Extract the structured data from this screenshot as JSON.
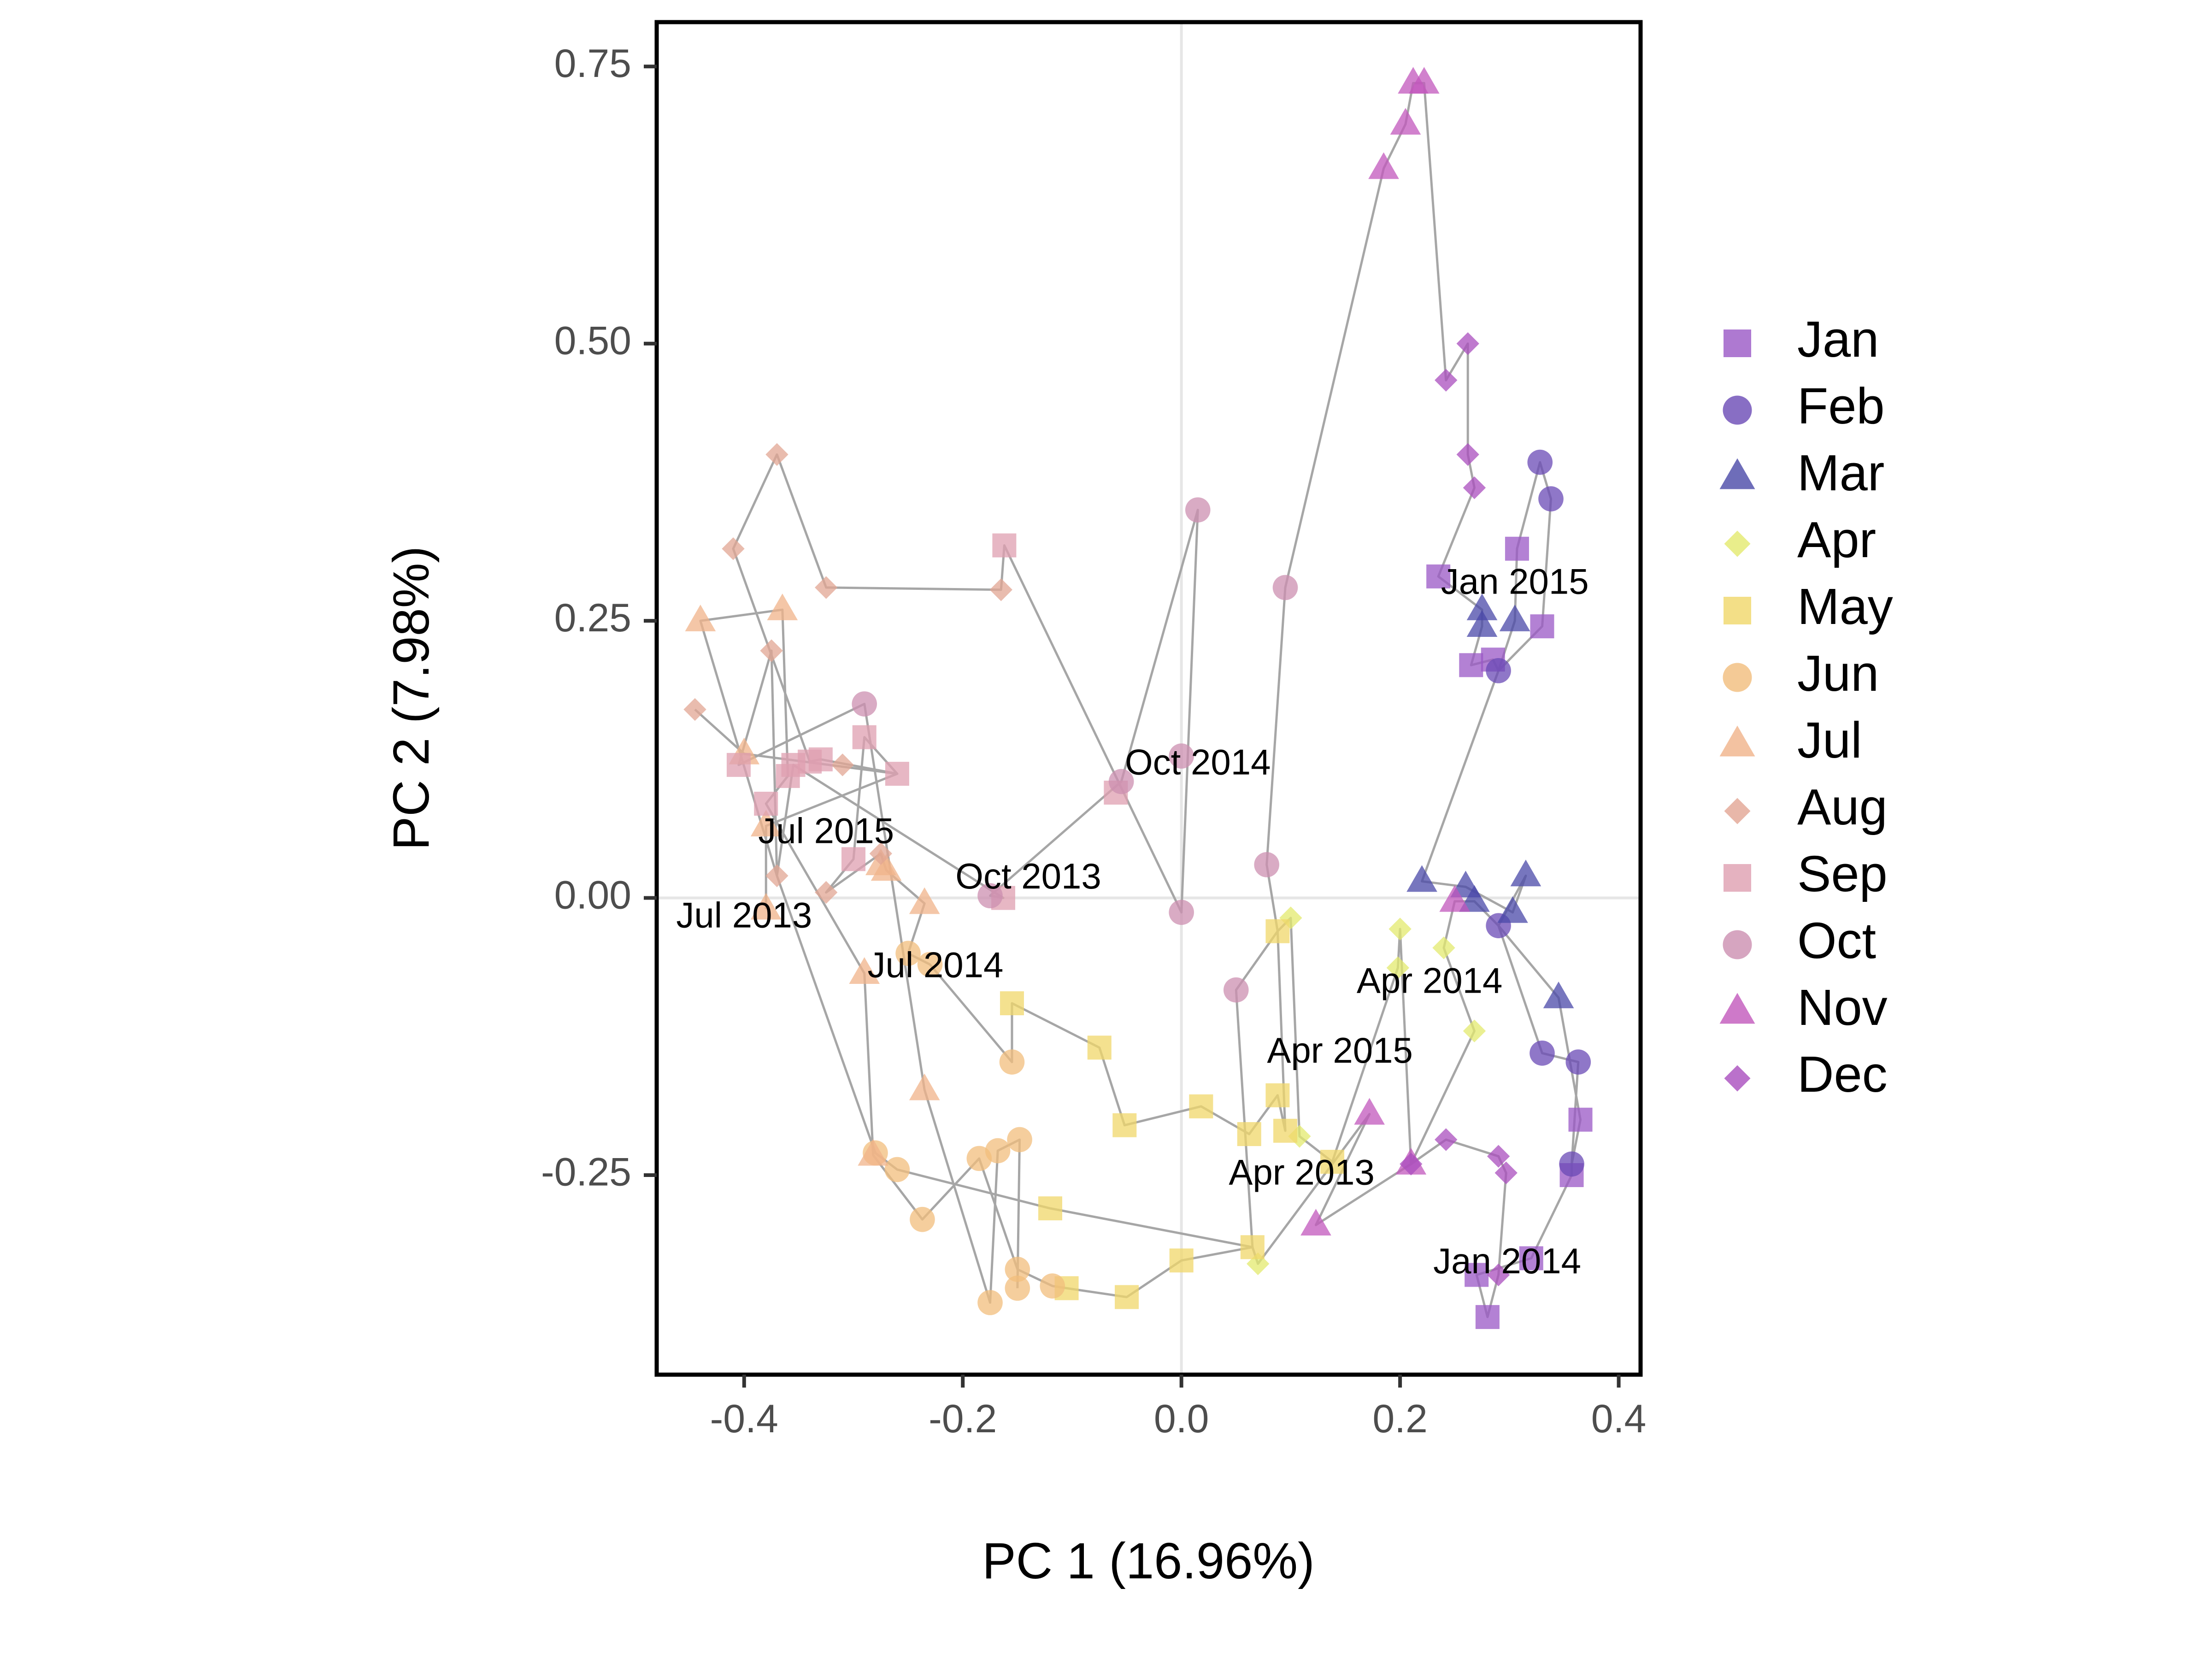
{
  "chart_data": {
    "type": "scatter",
    "xlabel": "PC 1 (16.96%)",
    "ylabel": "PC 2 (7.98%)",
    "xlim": [
      -0.48,
      0.42
    ],
    "ylim": [
      -0.43,
      0.79
    ],
    "xticks": [
      -0.4,
      -0.2,
      0.0,
      0.2,
      0.4
    ],
    "xtick_labels": [
      "-0.4",
      "-0.2",
      "0.0",
      "0.2",
      "0.4"
    ],
    "yticks": [
      -0.25,
      0.0,
      0.25,
      0.5,
      0.75
    ],
    "ytick_labels": [
      "-0.25",
      "0.00",
      "0.25",
      "0.50",
      "0.75"
    ],
    "reference_lines": {
      "x": 0,
      "y": 0
    },
    "grid": false,
    "legend_position": "right",
    "connecting_path_color": "#a6a6a6",
    "series": [
      {
        "name": "Jan",
        "color": "#9a57c6",
        "shape": "square",
        "points": [
          [
            0.235,
            0.29
          ],
          [
            0.307,
            0.315
          ],
          [
            0.33,
            0.245
          ],
          [
            0.265,
            0.21
          ],
          [
            0.285,
            0.215
          ],
          [
            0.365,
            -0.2
          ],
          [
            0.357,
            -0.25
          ],
          [
            0.32,
            -0.325
          ],
          [
            0.27,
            -0.34
          ],
          [
            0.28,
            -0.378
          ]
        ]
      },
      {
        "name": "Feb",
        "color": "#6a4ab5",
        "shape": "circle",
        "points": [
          [
            0.328,
            0.393
          ],
          [
            0.338,
            0.36
          ],
          [
            0.29,
            0.205
          ],
          [
            0.29,
            -0.025
          ],
          [
            0.33,
            -0.14
          ],
          [
            0.363,
            -0.148
          ],
          [
            0.357,
            -0.24
          ]
        ]
      },
      {
        "name": "Mar",
        "color": "#4a48a8",
        "shape": "triangle",
        "points": [
          [
            0.275,
            0.26
          ],
          [
            0.305,
            0.25
          ],
          [
            0.275,
            0.245
          ],
          [
            0.22,
            0.015
          ],
          [
            0.26,
            0.01
          ],
          [
            0.315,
            0.02
          ],
          [
            0.268,
            -0.003
          ],
          [
            0.303,
            -0.013
          ],
          [
            0.345,
            -0.09
          ]
        ]
      },
      {
        "name": "Apr",
        "color": "#e3ea6e",
        "shape": "diamond",
        "points": [
          [
            0.1,
            -0.018
          ],
          [
            0.2,
            -0.028
          ],
          [
            0.24,
            -0.045
          ],
          [
            0.198,
            -0.063
          ],
          [
            0.268,
            -0.12
          ],
          [
            0.07,
            -0.33
          ],
          [
            0.108,
            -0.215
          ]
        ]
      },
      {
        "name": "May",
        "color": "#f0d769",
        "shape": "square",
        "points": [
          [
            0.088,
            -0.03
          ],
          [
            -0.155,
            -0.095
          ],
          [
            -0.075,
            -0.135
          ],
          [
            -0.052,
            -0.205
          ],
          [
            0.018,
            -0.188
          ],
          [
            0.088,
            -0.178
          ],
          [
            0.062,
            -0.213
          ],
          [
            0.095,
            -0.21
          ],
          [
            0.138,
            -0.238
          ],
          [
            -0.12,
            -0.28
          ],
          [
            -0.105,
            -0.352
          ],
          [
            -0.05,
            -0.36
          ],
          [
            0.0,
            -0.327
          ],
          [
            0.065,
            -0.315
          ]
        ]
      },
      {
        "name": "Jun",
        "color": "#f1bd7c",
        "shape": "circle",
        "points": [
          [
            -0.25,
            -0.05
          ],
          [
            -0.23,
            -0.06
          ],
          [
            -0.155,
            -0.148
          ],
          [
            -0.28,
            -0.23
          ],
          [
            -0.26,
            -0.245
          ],
          [
            -0.185,
            -0.235
          ],
          [
            -0.168,
            -0.228
          ],
          [
            -0.148,
            -0.218
          ],
          [
            -0.237,
            -0.29
          ],
          [
            -0.15,
            -0.335
          ],
          [
            -0.175,
            -0.365
          ],
          [
            -0.15,
            -0.352
          ],
          [
            -0.118,
            -0.35
          ]
        ]
      },
      {
        "name": "Jul",
        "color": "#f0b38a",
        "shape": "triangle",
        "points": [
          [
            -0.44,
            0.25
          ],
          [
            -0.365,
            0.26
          ],
          [
            -0.4,
            0.13
          ],
          [
            -0.38,
            0.065
          ],
          [
            -0.275,
            0.03
          ],
          [
            -0.27,
            0.025
          ],
          [
            -0.38,
            -0.01
          ],
          [
            -0.235,
            -0.005
          ],
          [
            -0.29,
            -0.068
          ],
          [
            -0.235,
            -0.173
          ],
          [
            -0.282,
            -0.232
          ]
        ]
      },
      {
        "name": "Aug",
        "color": "#e2a593",
        "shape": "diamond",
        "points": [
          [
            -0.37,
            0.4
          ],
          [
            -0.41,
            0.315
          ],
          [
            -0.325,
            0.28
          ],
          [
            -0.165,
            0.278
          ],
          [
            -0.375,
            0.223
          ],
          [
            -0.445,
            0.17
          ],
          [
            -0.31,
            0.12
          ],
          [
            -0.37,
            0.02
          ],
          [
            -0.325,
            0.005
          ],
          [
            -0.275,
            0.04
          ]
        ]
      },
      {
        "name": "Sep",
        "color": "#df9fb0",
        "shape": "square",
        "points": [
          [
            -0.162,
            0.318
          ],
          [
            -0.29,
            0.145
          ],
          [
            -0.26,
            0.112
          ],
          [
            -0.34,
            0.123
          ],
          [
            -0.33,
            0.125
          ],
          [
            -0.355,
            0.12
          ],
          [
            -0.36,
            0.11
          ],
          [
            -0.405,
            0.12
          ],
          [
            -0.38,
            0.085
          ],
          [
            -0.3,
            0.035
          ],
          [
            -0.163,
            0.0
          ],
          [
            -0.06,
            0.095
          ]
        ]
      },
      {
        "name": "Oct",
        "color": "#cc8fb0",
        "shape": "circle",
        "points": [
          [
            0.015,
            0.35
          ],
          [
            0.095,
            0.28
          ],
          [
            -0.29,
            0.175
          ],
          [
            -0.055,
            0.105
          ],
          [
            0.0,
            0.128
          ],
          [
            0.078,
            0.03
          ],
          [
            -0.175,
            0.002
          ],
          [
            0.0,
            -0.013
          ],
          [
            0.05,
            -0.083
          ]
        ]
      },
      {
        "name": "Nov",
        "color": "#c257bc",
        "shape": "triangle",
        "points": [
          [
            0.212,
            0.735
          ],
          [
            0.222,
            0.735
          ],
          [
            0.205,
            0.698
          ],
          [
            0.185,
            0.658
          ],
          [
            0.25,
            -0.003
          ],
          [
            0.172,
            -0.195
          ],
          [
            0.21,
            -0.24
          ],
          [
            0.123,
            -0.295
          ]
        ]
      },
      {
        "name": "Dec",
        "color": "#a94ebe",
        "shape": "diamond",
        "points": [
          [
            0.262,
            0.5
          ],
          [
            0.242,
            0.467
          ],
          [
            0.262,
            0.4
          ],
          [
            0.268,
            0.37
          ],
          [
            0.242,
            -0.218
          ],
          [
            0.29,
            -0.233
          ],
          [
            0.297,
            -0.248
          ],
          [
            0.21,
            -0.24
          ],
          [
            0.29,
            -0.34
          ]
        ]
      }
    ],
    "path": [
      [
        -0.38,
        -0.01
      ],
      [
        -0.38,
        0.065
      ],
      [
        -0.26,
        0.112
      ],
      [
        -0.33,
        0.125
      ],
      [
        -0.34,
        0.123
      ],
      [
        -0.41,
        0.315
      ],
      [
        -0.37,
        0.4
      ],
      [
        -0.325,
        0.28
      ],
      [
        -0.165,
        0.278
      ],
      [
        -0.162,
        0.318
      ],
      [
        0.0,
        -0.013
      ],
      [
        0.015,
        0.35
      ],
      [
        -0.055,
        0.105
      ],
      [
        -0.175,
        0.002
      ],
      [
        -0.163,
        0.0
      ],
      [
        -0.355,
        0.12
      ],
      [
        -0.37,
        0.02
      ],
      [
        -0.44,
        0.25
      ],
      [
        -0.365,
        0.26
      ],
      [
        -0.36,
        0.11
      ],
      [
        -0.38,
        0.085
      ],
      [
        -0.29,
        -0.068
      ],
      [
        -0.282,
        -0.232
      ],
      [
        -0.237,
        -0.29
      ],
      [
        -0.185,
        -0.235
      ],
      [
        -0.15,
        -0.335
      ],
      [
        -0.118,
        -0.35
      ],
      [
        -0.105,
        -0.352
      ],
      [
        -0.05,
        -0.36
      ],
      [
        0.0,
        -0.327
      ],
      [
        0.065,
        -0.315
      ],
      [
        0.07,
        -0.33
      ],
      [
        0.172,
        -0.195
      ],
      [
        0.123,
        -0.295
      ],
      [
        0.21,
        -0.24
      ],
      [
        0.242,
        -0.218
      ],
      [
        0.29,
        -0.233
      ],
      [
        0.297,
        -0.248
      ],
      [
        0.29,
        -0.34
      ],
      [
        0.28,
        -0.378
      ],
      [
        0.27,
        -0.34
      ],
      [
        0.32,
        -0.325
      ],
      [
        0.357,
        -0.25
      ],
      [
        0.357,
        -0.24
      ],
      [
        0.365,
        -0.2
      ],
      [
        0.345,
        -0.09
      ],
      [
        0.29,
        -0.025
      ],
      [
        0.268,
        -0.003
      ],
      [
        0.25,
        -0.003
      ],
      [
        0.24,
        -0.045
      ],
      [
        0.268,
        -0.12
      ],
      [
        0.21,
        -0.24
      ],
      [
        0.2,
        -0.028
      ],
      [
        0.198,
        -0.063
      ],
      [
        0.138,
        -0.238
      ],
      [
        0.108,
        -0.215
      ],
      [
        0.1,
        -0.018
      ],
      [
        0.088,
        -0.03
      ],
      [
        0.078,
        0.03
      ],
      [
        0.095,
        0.28
      ],
      [
        0.185,
        0.658
      ],
      [
        0.205,
        0.698
      ],
      [
        0.212,
        0.735
      ],
      [
        0.222,
        0.735
      ],
      [
        0.242,
        0.467
      ],
      [
        0.262,
        0.5
      ],
      [
        0.262,
        0.4
      ],
      [
        0.268,
        0.37
      ],
      [
        0.235,
        0.29
      ],
      [
        0.275,
        0.26
      ],
      [
        0.275,
        0.245
      ],
      [
        0.265,
        0.21
      ],
      [
        0.285,
        0.215
      ],
      [
        0.29,
        0.205
      ],
      [
        0.305,
        0.25
      ],
      [
        0.307,
        0.315
      ],
      [
        0.328,
        0.393
      ],
      [
        0.338,
        0.36
      ],
      [
        0.33,
        0.245
      ],
      [
        0.29,
        0.205
      ],
      [
        0.22,
        0.015
      ],
      [
        0.26,
        0.01
      ],
      [
        0.303,
        -0.013
      ],
      [
        0.315,
        0.02
      ],
      [
        0.29,
        -0.025
      ],
      [
        0.33,
        -0.14
      ],
      [
        0.363,
        -0.148
      ],
      [
        0.357,
        -0.24
      ]
    ],
    "path2": [
      [
        -0.445,
        0.17
      ],
      [
        -0.4,
        0.13
      ],
      [
        -0.26,
        0.112
      ],
      [
        -0.29,
        0.145
      ],
      [
        -0.3,
        0.035
      ],
      [
        -0.325,
        0.005
      ],
      [
        -0.275,
        0.04
      ],
      [
        -0.27,
        0.025
      ],
      [
        -0.235,
        -0.005
      ],
      [
        -0.25,
        -0.05
      ],
      [
        -0.23,
        -0.06
      ],
      [
        -0.155,
        -0.148
      ],
      [
        -0.155,
        -0.095
      ],
      [
        -0.075,
        -0.135
      ],
      [
        -0.052,
        -0.205
      ],
      [
        0.018,
        -0.188
      ],
      [
        0.062,
        -0.213
      ],
      [
        0.088,
        -0.178
      ],
      [
        0.095,
        -0.21
      ],
      [
        0.088,
        -0.03
      ],
      [
        0.05,
        -0.083
      ],
      [
        0.065,
        -0.315
      ],
      [
        -0.12,
        -0.28
      ],
      [
        -0.26,
        -0.245
      ],
      [
        -0.28,
        -0.23
      ],
      [
        -0.37,
        0.02
      ],
      [
        -0.375,
        0.223
      ],
      [
        -0.405,
        0.12
      ],
      [
        -0.29,
        0.175
      ],
      [
        -0.235,
        -0.173
      ],
      [
        -0.175,
        -0.365
      ],
      [
        -0.168,
        -0.228
      ],
      [
        -0.148,
        -0.218
      ],
      [
        -0.15,
        -0.352
      ]
    ],
    "annotations": [
      {
        "text": "Jan 2015",
        "x": 0.305,
        "y": 0.283
      },
      {
        "text": "Oct 2014",
        "x": 0.015,
        "y": 0.12
      },
      {
        "text": "Jul 2015",
        "x": -0.325,
        "y": 0.058
      },
      {
        "text": "Oct 2013",
        "x": -0.14,
        "y": 0.017
      },
      {
        "text": "Jul 2013",
        "x": -0.4,
        "y": -0.018
      },
      {
        "text": "Jul 2014",
        "x": -0.225,
        "y": -0.063
      },
      {
        "text": "Apr 2014",
        "x": 0.227,
        "y": -0.077
      },
      {
        "text": "Apr 2015",
        "x": 0.145,
        "y": -0.14
      },
      {
        "text": "Apr 2013",
        "x": 0.11,
        "y": -0.25
      },
      {
        "text": "Jan 2014",
        "x": 0.298,
        "y": -0.33
      }
    ]
  }
}
